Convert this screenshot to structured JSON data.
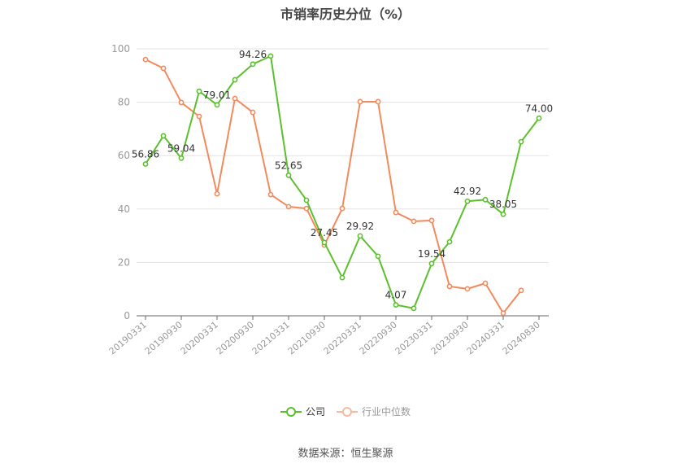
{
  "title": "市销率历史分位（%）",
  "source": "数据来源：恒生聚源",
  "legend": {
    "company": "公司",
    "industry": "行业中位数"
  },
  "colors": {
    "company": "#5cc02e",
    "industry": "#f28a5c",
    "grid": "#e3e3e3",
    "axis": "#666666",
    "tick_label": "#999999"
  },
  "chart_data": {
    "type": "line",
    "title": "市销率历史分位（%）",
    "xlabel": "",
    "ylabel": "",
    "ylim": [
      0,
      100
    ],
    "yticks": [
      0,
      20,
      40,
      60,
      80,
      100
    ],
    "grid": true,
    "legend_position": "bottom",
    "x_tick_labels": [
      "20190331",
      "20190930",
      "20200331",
      "20200930",
      "20210331",
      "20210930",
      "20220331",
      "20220930",
      "20230331",
      "20230930",
      "20240331",
      "20240830"
    ],
    "x": [
      "20190331",
      "20190630",
      "20190930",
      "20191231",
      "20200331",
      "20200630",
      "20200930",
      "20201231",
      "20210331",
      "20210630",
      "20210930",
      "20211231",
      "20220331",
      "20220630",
      "20220930",
      "20221231",
      "20230331",
      "20230630",
      "20230930",
      "20231231",
      "20240331",
      "20240630",
      "20240830"
    ],
    "series": [
      {
        "name": "公司",
        "values": [
          56.86,
          67.4,
          59.04,
          84.1,
          79.01,
          88.4,
          94.26,
          97.3,
          52.65,
          43.3,
          27.45,
          14.3,
          29.92,
          22.3,
          4.07,
          2.8,
          19.54,
          27.7,
          42.92,
          43.5,
          38.05,
          65.2,
          74.0
        ],
        "labels": {
          "0": "56.86",
          "2": "59.04",
          "4": "79.01",
          "6": "94.26",
          "8": "52.65",
          "10": "27.45",
          "12": "29.92",
          "14": "4.07",
          "16": "19.54",
          "18": "42.92",
          "20": "38.05",
          "22": "74.00"
        }
      },
      {
        "name": "行业中位数",
        "values": [
          96.0,
          92.7,
          79.9,
          74.7,
          45.7,
          81.4,
          76.2,
          45.4,
          40.9,
          40.2,
          26.5,
          40.2,
          80.2,
          80.2,
          38.7,
          35.4,
          35.7,
          11.0,
          10.1,
          12.2,
          1.0,
          9.5,
          null
        ]
      }
    ]
  }
}
